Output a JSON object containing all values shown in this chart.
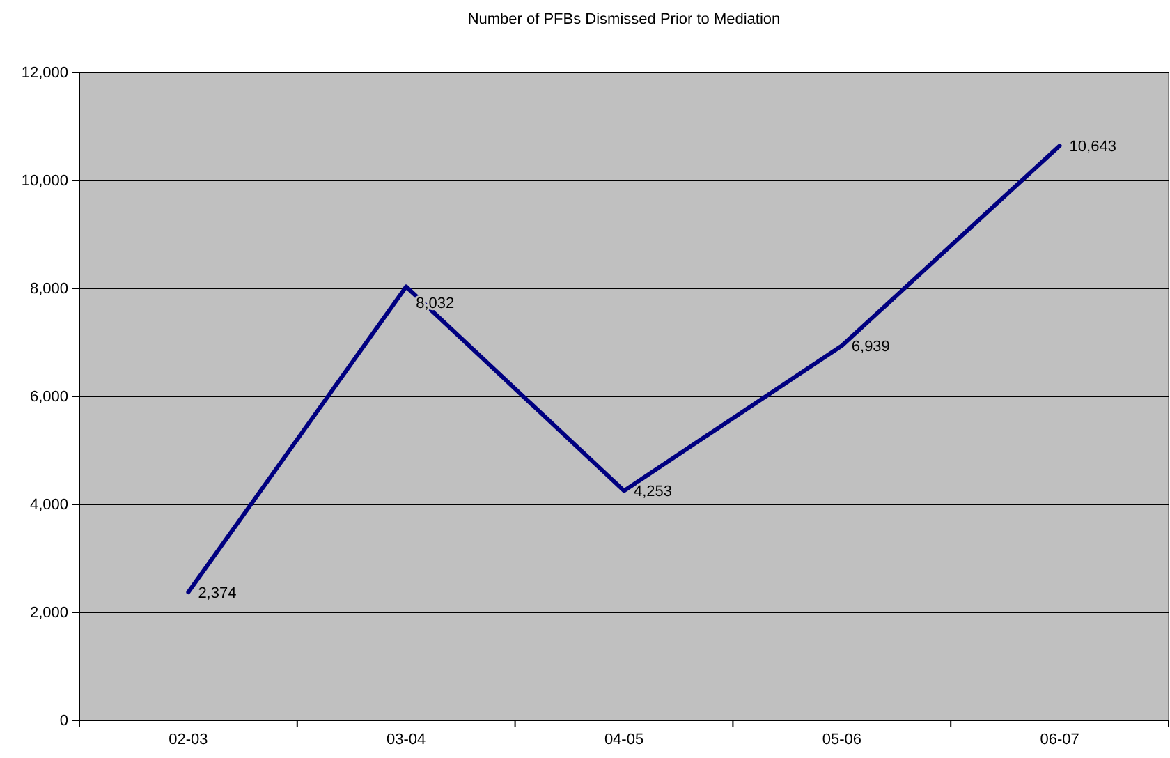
{
  "chart_data": {
    "type": "line",
    "title": "Number of PFBs Dismissed Prior to Mediation",
    "categories": [
      "02-03",
      "03-04",
      "04-05",
      "05-06",
      "06-07"
    ],
    "series": [
      {
        "color": "#000080",
        "values": [
          2374,
          8032,
          4253,
          6939,
          10643
        ],
        "value_labels": [
          "2,374",
          "8,032",
          "4,253",
          "6,939",
          "10,643"
        ]
      }
    ],
    "ylim": [
      0,
      12000
    ],
    "yticks": [
      {
        "value": 0,
        "label": "0"
      },
      {
        "value": 2000,
        "label": "2,000"
      },
      {
        "value": 4000,
        "label": "4,000"
      },
      {
        "value": 6000,
        "label": "6,000"
      },
      {
        "value": 8000,
        "label": "8,000"
      },
      {
        "value": 10000,
        "label": "10,000"
      },
      {
        "value": 12000,
        "label": "12,000"
      }
    ],
    "grid": "y",
    "marker": "none",
    "line_style": "solid"
  }
}
